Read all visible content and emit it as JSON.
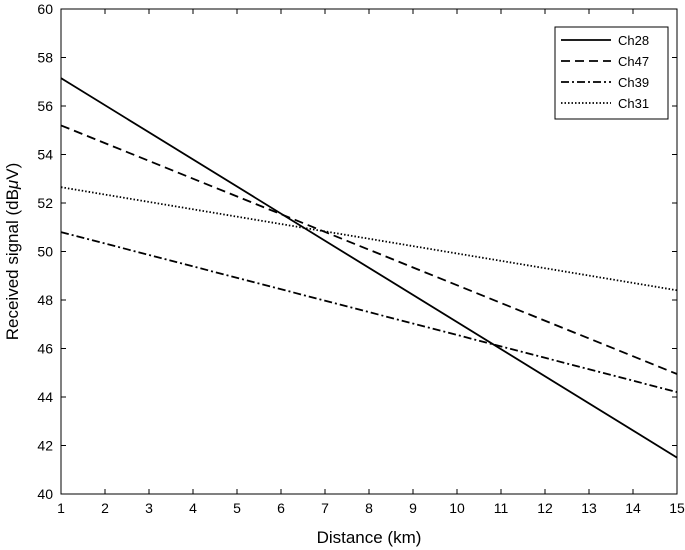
{
  "chart_data": {
    "type": "line",
    "title": "",
    "xlabel": "Distance (km)",
    "ylabel": "Received signal (dBμV)",
    "ylabel_parts": {
      "before": "Received signal (dB",
      "mu": "μ",
      "after": "V)"
    },
    "xlim": [
      1,
      15
    ],
    "ylim": [
      40,
      60
    ],
    "xticks": [
      1,
      2,
      3,
      4,
      5,
      6,
      7,
      8,
      9,
      10,
      11,
      12,
      13,
      14,
      15
    ],
    "yticks": [
      40,
      42,
      44,
      46,
      48,
      50,
      52,
      54,
      56,
      58,
      60
    ],
    "grid": false,
    "legend_position": "top-right",
    "series": [
      {
        "name": "Ch28",
        "style": "solid",
        "x": [
          1,
          15
        ],
        "y": [
          57.15,
          41.5
        ]
      },
      {
        "name": "Ch47",
        "style": "dashed",
        "x": [
          1,
          15
        ],
        "y": [
          55.2,
          44.95
        ]
      },
      {
        "name": "Ch39",
        "style": "dashdot",
        "x": [
          1,
          15
        ],
        "y": [
          50.8,
          44.2
        ]
      },
      {
        "name": "Ch31",
        "style": "dotted",
        "x": [
          1,
          15
        ],
        "y": [
          52.65,
          48.4
        ]
      }
    ]
  }
}
